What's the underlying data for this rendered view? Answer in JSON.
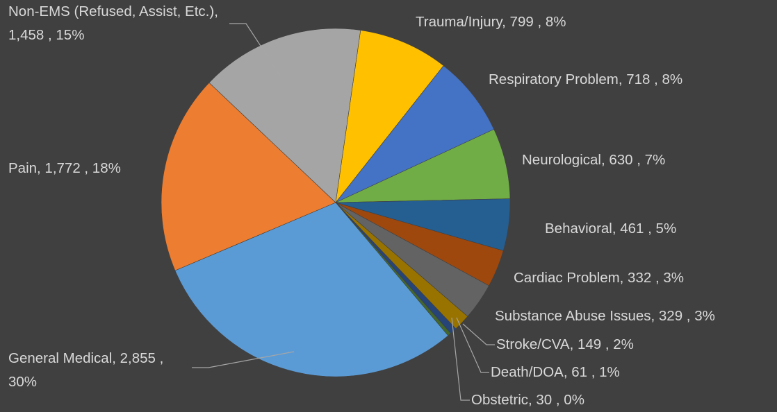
{
  "chart_data": {
    "type": "pie",
    "value_labels": [
      "Trauma/Injury, 799 , 8%",
      "Respiratory Problem, 718 , 8%",
      "Neurological, 630 , 7%",
      "Behavioral, 461 , 5%",
      "Cardiac Problem, 332 , 3%",
      "Substance Abuse Issues, 329 , 3%",
      "Stroke/CVA, 149 , 2%",
      "Death/DOA, 61 , 1%",
      "Obstetric, 30 , 0%",
      "General Medical, 2,855 , 30%",
      "Pain, 1,772 , 18%",
      "Non-EMS (Refused, Assist, Etc.), 1,458 , 15%"
    ],
    "values": [
      799,
      718,
      630,
      461,
      332,
      329,
      149,
      61,
      30,
      2855,
      1772,
      1458
    ],
    "colors": [
      "#ffc000",
      "#4472c4",
      "#70ad47",
      "#255e91",
      "#9e480e",
      "#636363",
      "#997300",
      "#264478",
      "#43682b",
      "#5b9bd5",
      "#ed7d31",
      "#a5a5a5"
    ]
  }
}
